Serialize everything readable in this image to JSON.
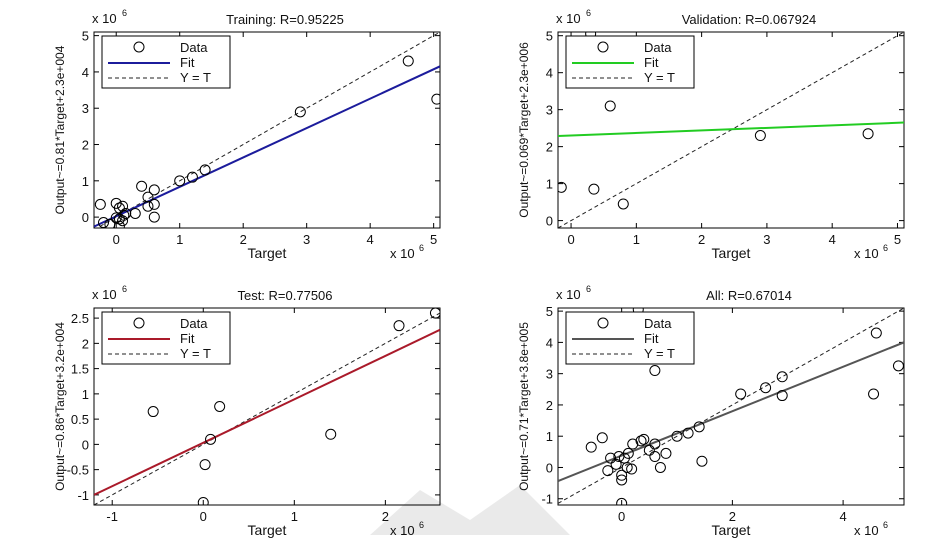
{
  "figure": {
    "background": "#ffffff"
  },
  "chart_data": [
    {
      "id": "training",
      "type": "scatter",
      "title": "Training: R=0.95225",
      "xlabel": "Target",
      "ylabel": "Output~=0.81*Target+2.3e+004",
      "exponent_x": "x 10",
      "exponent_y": "x 10",
      "exponent_power": "6",
      "xlim": [
        -0.35,
        5.1
      ],
      "ylim": [
        -0.3,
        5.1
      ],
      "xticks": [
        0,
        1,
        2,
        3,
        4,
        5
      ],
      "yticks": [
        0,
        1,
        2,
        3,
        4,
        5
      ],
      "xtick_labels": [
        "0",
        "1",
        "2",
        "3",
        "4",
        "5"
      ],
      "ytick_labels": [
        "0",
        "1",
        "2",
        "3",
        "4",
        "5"
      ],
      "fit": {
        "slope": 0.81,
        "intercept": 0.023,
        "color": "#1c1c9c"
      },
      "identity_color": "#222222",
      "legend": {
        "position": "top-left",
        "entries": [
          "Data",
          "Fit",
          "Y = T"
        ]
      },
      "points": [
        [
          -0.25,
          0.35
        ],
        [
          -0.2,
          -0.15
        ],
        [
          -0.1,
          -0.2
        ],
        [
          0.0,
          0.38
        ],
        [
          0.05,
          0.25
        ],
        [
          0.05,
          -0.05
        ],
        [
          0.1,
          -0.1
        ],
        [
          0.1,
          0.3
        ],
        [
          0.05,
          -0.25
        ],
        [
          0.12,
          0.05
        ],
        [
          0.3,
          0.1
        ],
        [
          0.4,
          0.85
        ],
        [
          0.5,
          0.55
        ],
        [
          0.6,
          0.75
        ],
        [
          0.6,
          0.35
        ],
        [
          0.6,
          0.0
        ],
        [
          0.5,
          0.3
        ],
        [
          1.0,
          1.0
        ],
        [
          1.2,
          1.1
        ],
        [
          1.4,
          1.3
        ],
        [
          2.9,
          2.9
        ],
        [
          4.6,
          4.3
        ],
        [
          5.05,
          3.25
        ],
        [
          0.0,
          -0.02
        ],
        [
          0.15,
          0.1
        ]
      ]
    },
    {
      "id": "validation",
      "type": "scatter",
      "title": "Validation: R=0.067924",
      "xlabel": "Target",
      "ylabel": "Output~=0.069*Target+2.3e+006",
      "exponent_x": "x 10",
      "exponent_y": "x 10",
      "exponent_power": "6",
      "xlim": [
        -0.2,
        5.1
      ],
      "ylim": [
        -0.2,
        5.1
      ],
      "xticks": [
        0,
        1,
        2,
        3,
        4,
        5
      ],
      "yticks": [
        0,
        1,
        2,
        3,
        4,
        5
      ],
      "xtick_labels": [
        "0",
        "1",
        "2",
        "3",
        "4",
        "5"
      ],
      "ytick_labels": [
        "0",
        "1",
        "2",
        "3",
        "4",
        "5"
      ],
      "fit": {
        "slope": 0.069,
        "intercept": 2.3,
        "color": "#22cc22"
      },
      "identity_color": "#222222",
      "legend": {
        "position": "top-left",
        "entries": [
          "Data",
          "Fit",
          "Y = T"
        ]
      },
      "points": [
        [
          -0.15,
          0.9
        ],
        [
          0.3,
          5.05
        ],
        [
          0.35,
          0.85
        ],
        [
          0.6,
          3.1
        ],
        [
          0.8,
          0.45
        ],
        [
          2.9,
          2.3
        ],
        [
          4.55,
          2.35
        ]
      ]
    },
    {
      "id": "test",
      "type": "scatter",
      "title": "Test: R=0.77506",
      "xlabel": "Target",
      "ylabel": "Output~=0.86*Target+3.2e+004",
      "exponent_x": "x 10",
      "exponent_y": "x 10",
      "exponent_power": "6",
      "xlim": [
        -1.2,
        2.6
      ],
      "ylim": [
        -1.2,
        2.7
      ],
      "xticks": [
        -1,
        0,
        1,
        2
      ],
      "yticks": [
        -1,
        -0.5,
        0,
        0.5,
        1,
        1.5,
        2,
        2.5
      ],
      "xtick_labels": [
        "-1",
        "0",
        "1",
        "2"
      ],
      "ytick_labels": [
        "-1",
        "-0.5",
        "0",
        "0.5",
        "1",
        "1.5",
        "2",
        "2.5"
      ],
      "fit": {
        "slope": 0.86,
        "intercept": 0.032,
        "color": "#aa1a2a"
      },
      "identity_color": "#222222",
      "legend": {
        "position": "top-left",
        "entries": [
          "Data",
          "Fit",
          "Y = T"
        ]
      },
      "points": [
        [
          -0.55,
          0.65
        ],
        [
          0.0,
          -1.15
        ],
        [
          0.02,
          -0.4
        ],
        [
          0.08,
          0.1
        ],
        [
          0.18,
          0.75
        ],
        [
          1.4,
          0.2
        ],
        [
          2.15,
          2.35
        ],
        [
          2.55,
          2.6
        ]
      ]
    },
    {
      "id": "all",
      "type": "scatter",
      "title": "All: R=0.67014",
      "xlabel": "Target",
      "ylabel": "Output~=0.71*Target+3.8e+005",
      "exponent_x": "x 10",
      "exponent_y": "x 10",
      "exponent_power": "6",
      "xlim": [
        -1.15,
        5.1
      ],
      "ylim": [
        -1.2,
        5.1
      ],
      "xticks": [
        0,
        2,
        4
      ],
      "yticks": [
        -1,
        0,
        1,
        2,
        3,
        4,
        5
      ],
      "xtick_labels": [
        "0",
        "2",
        "4"
      ],
      "ytick_labels": [
        "-1",
        "0",
        "1",
        "2",
        "3",
        "4",
        "5"
      ],
      "fit": {
        "slope": 0.71,
        "intercept": 0.38,
        "color": "#555555"
      },
      "identity_color": "#222222",
      "legend": {
        "position": "top-left",
        "entries": [
          "Data",
          "Fit",
          "Y = T"
        ]
      },
      "points": [
        [
          -0.55,
          0.65
        ],
        [
          -0.35,
          0.95
        ],
        [
          -0.2,
          0.3
        ],
        [
          -0.25,
          -0.1
        ],
        [
          -0.1,
          0.1
        ],
        [
          0.0,
          -0.25
        ],
        [
          0.0,
          -0.4
        ],
        [
          0.0,
          -1.15
        ],
        [
          0.05,
          0.3
        ],
        [
          0.1,
          0.0
        ],
        [
          0.12,
          0.45
        ],
        [
          0.2,
          0.75
        ],
        [
          0.3,
          5.05
        ],
        [
          0.35,
          0.85
        ],
        [
          0.4,
          0.9
        ],
        [
          0.5,
          0.55
        ],
        [
          0.6,
          0.75
        ],
        [
          0.6,
          3.1
        ],
        [
          0.6,
          0.35
        ],
        [
          0.7,
          0.0
        ],
        [
          0.8,
          0.45
        ],
        [
          1.0,
          1.0
        ],
        [
          1.2,
          1.1
        ],
        [
          1.4,
          1.3
        ],
        [
          1.45,
          0.2
        ],
        [
          2.15,
          2.35
        ],
        [
          2.6,
          2.55
        ],
        [
          2.9,
          2.9
        ],
        [
          2.9,
          2.3
        ],
        [
          4.55,
          2.35
        ],
        [
          4.6,
          4.3
        ],
        [
          5.0,
          3.25
        ],
        [
          0.18,
          -0.05
        ],
        [
          -0.05,
          0.35
        ]
      ]
    }
  ]
}
